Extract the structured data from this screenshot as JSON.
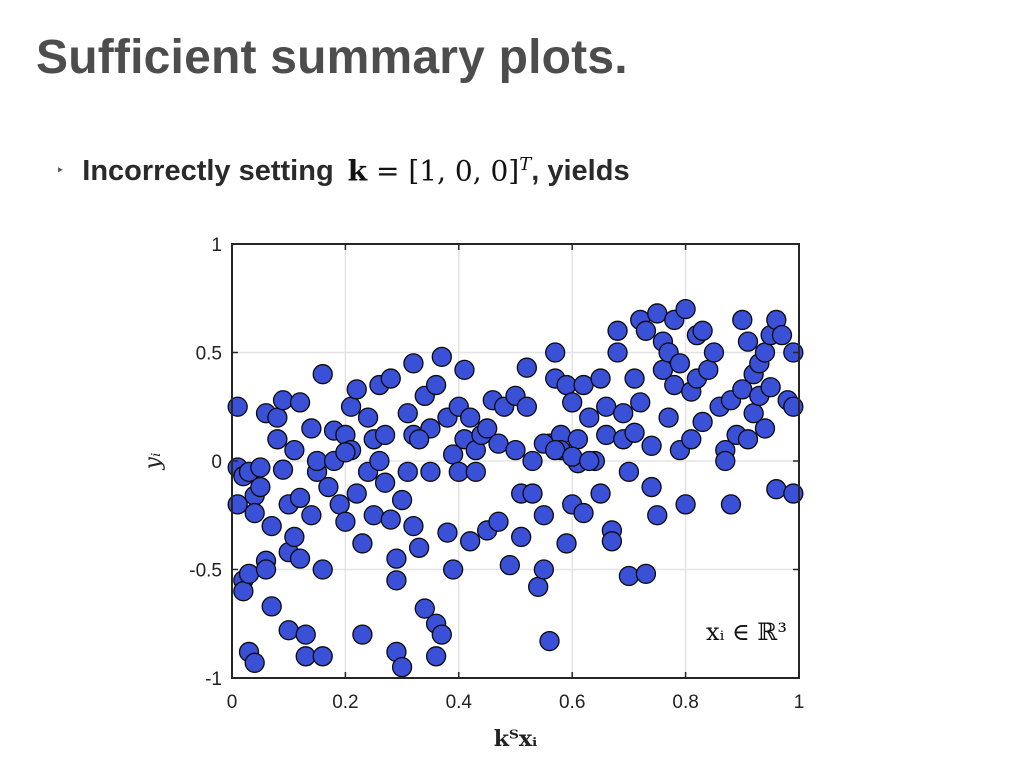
{
  "slide": {
    "title": "Sufficient summary plots.",
    "bullet_marker": "‣",
    "bullet_text": "Incorrectly setting",
    "bullet_math_k": "k",
    "bullet_math_eq": " = [1, 0, 0]",
    "bullet_math_sup": "T",
    "bullet_suffix": ", yields"
  },
  "chart_data": {
    "type": "scatter",
    "xlabel": "kᵀxᵢ",
    "ylabel": "yᵢ",
    "annotation": "xᵢ ∈ ℝ³",
    "xlim": [
      0,
      1
    ],
    "ylim": [
      -1,
      1
    ],
    "xticks": [
      0,
      0.2,
      0.4,
      0.6,
      0.8,
      1
    ],
    "xtick_labels": [
      "0",
      "0.2",
      "0.4",
      "0.6",
      "0.8",
      "1"
    ],
    "yticks": [
      -1,
      -0.5,
      0,
      0.5,
      1
    ],
    "ytick_labels": [
      "-1",
      "-0.5",
      "0",
      "0.5",
      "1"
    ],
    "grid": true,
    "marker_fill": "#3a50d6",
    "marker_edge": "#0a0a0a",
    "points": [
      [
        0.01,
        0.25
      ],
      [
        0.01,
        -0.03
      ],
      [
        0.02,
        -0.07
      ],
      [
        0.01,
        -0.2
      ],
      [
        0.02,
        -0.55
      ],
      [
        0.02,
        -0.6
      ],
      [
        0.03,
        -0.52
      ],
      [
        0.03,
        -0.88
      ],
      [
        0.04,
        -0.93
      ],
      [
        0.03,
        -0.05
      ],
      [
        0.04,
        -0.16
      ],
      [
        0.04,
        -0.24
      ],
      [
        0.05,
        -0.03
      ],
      [
        0.05,
        -0.12
      ],
      [
        0.06,
        0.22
      ],
      [
        0.06,
        -0.46
      ],
      [
        0.06,
        -0.5
      ],
      [
        0.07,
        -0.67
      ],
      [
        0.07,
        -0.3
      ],
      [
        0.08,
        0.1
      ],
      [
        0.08,
        0.2
      ],
      [
        0.09,
        -0.04
      ],
      [
        0.09,
        0.28
      ],
      [
        0.1,
        -0.2
      ],
      [
        0.1,
        -0.42
      ],
      [
        0.1,
        -0.78
      ],
      [
        0.11,
        0.05
      ],
      [
        0.11,
        -0.35
      ],
      [
        0.12,
        -0.17
      ],
      [
        0.12,
        0.27
      ],
      [
        0.12,
        -0.45
      ],
      [
        0.13,
        -0.8
      ],
      [
        0.13,
        -0.9
      ],
      [
        0.14,
        0.15
      ],
      [
        0.14,
        -0.25
      ],
      [
        0.15,
        -0.05
      ],
      [
        0.15,
        0.0
      ],
      [
        0.16,
        0.4
      ],
      [
        0.16,
        -0.5
      ],
      [
        0.16,
        -0.9
      ],
      [
        0.17,
        -0.12
      ],
      [
        0.18,
        0.0
      ],
      [
        0.18,
        0.14
      ],
      [
        0.19,
        -0.2
      ],
      [
        0.2,
        0.12
      ],
      [
        0.2,
        -0.28
      ],
      [
        0.21,
        0.25
      ],
      [
        0.21,
        0.05
      ],
      [
        0.22,
        -0.15
      ],
      [
        0.22,
        0.33
      ],
      [
        0.23,
        -0.38
      ],
      [
        0.23,
        -0.8
      ],
      [
        0.24,
        0.2
      ],
      [
        0.24,
        -0.05
      ],
      [
        0.25,
        0.1
      ],
      [
        0.25,
        -0.25
      ],
      [
        0.26,
        0.35
      ],
      [
        0.26,
        0.0
      ],
      [
        0.27,
        -0.1
      ],
      [
        0.27,
        0.12
      ],
      [
        0.28,
        0.38
      ],
      [
        0.28,
        -0.27
      ],
      [
        0.29,
        -0.45
      ],
      [
        0.29,
        -0.55
      ],
      [
        0.29,
        -0.88
      ],
      [
        0.3,
        -0.18
      ],
      [
        0.3,
        -0.95
      ],
      [
        0.31,
        0.22
      ],
      [
        0.31,
        -0.05
      ],
      [
        0.32,
        0.45
      ],
      [
        0.32,
        0.12
      ],
      [
        0.32,
        -0.3
      ],
      [
        0.33,
        -0.4
      ],
      [
        0.34,
        0.3
      ],
      [
        0.34,
        -0.68
      ],
      [
        0.35,
        0.15
      ],
      [
        0.35,
        -0.05
      ],
      [
        0.36,
        -0.75
      ],
      [
        0.36,
        0.35
      ],
      [
        0.36,
        -0.9
      ],
      [
        0.37,
        -0.8
      ],
      [
        0.37,
        0.48
      ],
      [
        0.38,
        0.2
      ],
      [
        0.38,
        -0.33
      ],
      [
        0.39,
        0.03
      ],
      [
        0.39,
        -0.5
      ],
      [
        0.4,
        0.25
      ],
      [
        0.4,
        -0.05
      ],
      [
        0.41,
        0.42
      ],
      [
        0.41,
        0.1
      ],
      [
        0.42,
        0.2
      ],
      [
        0.42,
        -0.37
      ],
      [
        0.43,
        0.05
      ],
      [
        0.43,
        -0.05
      ],
      [
        0.44,
        0.12
      ],
      [
        0.45,
        -0.32
      ],
      [
        0.45,
        0.15
      ],
      [
        0.46,
        0.28
      ],
      [
        0.47,
        0.08
      ],
      [
        0.47,
        -0.28
      ],
      [
        0.48,
        0.25
      ],
      [
        0.49,
        -0.48
      ],
      [
        0.5,
        0.3
      ],
      [
        0.5,
        0.05
      ],
      [
        0.51,
        -0.15
      ],
      [
        0.51,
        -0.35
      ],
      [
        0.52,
        0.43
      ],
      [
        0.52,
        0.25
      ],
      [
        0.53,
        0.0
      ],
      [
        0.53,
        -0.15
      ],
      [
        0.54,
        -0.58
      ],
      [
        0.55,
        -0.5
      ],
      [
        0.55,
        -0.25
      ],
      [
        0.56,
        0.08
      ],
      [
        0.56,
        -0.83
      ],
      [
        0.57,
        0.38
      ],
      [
        0.57,
        0.5
      ],
      [
        0.58,
        0.12
      ],
      [
        0.58,
        0.05
      ],
      [
        0.59,
        0.35
      ],
      [
        0.59,
        -0.38
      ],
      [
        0.6,
        0.27
      ],
      [
        0.6,
        -0.2
      ],
      [
        0.61,
        0.1
      ],
      [
        0.61,
        -0.01
      ],
      [
        0.62,
        0.35
      ],
      [
        0.62,
        -0.24
      ],
      [
        0.63,
        0.2
      ],
      [
        0.64,
        0.0
      ],
      [
        0.65,
        -0.15
      ],
      [
        0.65,
        0.38
      ],
      [
        0.66,
        0.25
      ],
      [
        0.66,
        0.12
      ],
      [
        0.67,
        -0.32
      ],
      [
        0.67,
        -0.37
      ],
      [
        0.68,
        0.6
      ],
      [
        0.68,
        0.5
      ],
      [
        0.69,
        0.1
      ],
      [
        0.69,
        0.22
      ],
      [
        0.7,
        -0.53
      ],
      [
        0.7,
        -0.05
      ],
      [
        0.71,
        0.38
      ],
      [
        0.71,
        0.13
      ],
      [
        0.72,
        0.65
      ],
      [
        0.72,
        0.27
      ],
      [
        0.73,
        0.6
      ],
      [
        0.73,
        -0.52
      ],
      [
        0.74,
        0.07
      ],
      [
        0.74,
        -0.12
      ],
      [
        0.75,
        -0.25
      ],
      [
        0.75,
        0.68
      ],
      [
        0.76,
        0.55
      ],
      [
        0.76,
        0.42
      ],
      [
        0.77,
        0.2
      ],
      [
        0.77,
        0.5
      ],
      [
        0.78,
        0.65
      ],
      [
        0.78,
        0.35
      ],
      [
        0.79,
        0.45
      ],
      [
        0.79,
        0.05
      ],
      [
        0.8,
        0.7
      ],
      [
        0.8,
        -0.2
      ],
      [
        0.81,
        0.32
      ],
      [
        0.81,
        0.1
      ],
      [
        0.82,
        0.58
      ],
      [
        0.82,
        0.38
      ],
      [
        0.83,
        0.18
      ],
      [
        0.83,
        0.6
      ],
      [
        0.84,
        0.42
      ],
      [
        0.85,
        0.5
      ],
      [
        0.86,
        0.25
      ],
      [
        0.87,
        0.05
      ],
      [
        0.87,
        0.0
      ],
      [
        0.88,
        0.28
      ],
      [
        0.88,
        -0.2
      ],
      [
        0.89,
        0.12
      ],
      [
        0.9,
        0.65
      ],
      [
        0.9,
        0.33
      ],
      [
        0.91,
        0.55
      ],
      [
        0.91,
        0.1
      ],
      [
        0.92,
        0.4
      ],
      [
        0.92,
        0.22
      ],
      [
        0.93,
        0.45
      ],
      [
        0.93,
        0.3
      ],
      [
        0.94,
        0.5
      ],
      [
        0.94,
        0.15
      ],
      [
        0.95,
        0.58
      ],
      [
        0.95,
        0.34
      ],
      [
        0.96,
        0.65
      ],
      [
        0.96,
        -0.13
      ],
      [
        0.97,
        0.58
      ],
      [
        0.98,
        0.28
      ],
      [
        0.99,
        0.25
      ],
      [
        0.99,
        -0.15
      ],
      [
        0.99,
        0.5
      ],
      [
        0.55,
        0.08
      ],
      [
        0.57,
        0.05
      ],
      [
        0.6,
        0.02
      ],
      [
        0.63,
        0.0
      ],
      [
        0.33,
        0.1
      ],
      [
        0.2,
        0.04
      ]
    ]
  }
}
